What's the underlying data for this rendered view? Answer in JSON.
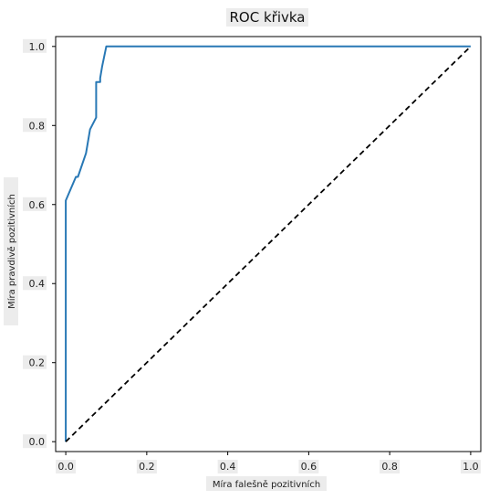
{
  "chart_data": {
    "type": "line",
    "title": "ROC křivka",
    "xlabel": "Míra falešně pozitivních",
    "ylabel": "Míra pravdivě pozitivních",
    "xlim": [
      -0.025,
      1.025
    ],
    "ylim": [
      -0.025,
      1.025
    ],
    "xticks": [
      0.0,
      0.2,
      0.4,
      0.6,
      0.8,
      1.0
    ],
    "yticks": [
      0.0,
      0.2,
      0.4,
      0.6,
      0.8,
      1.0
    ],
    "grid": false,
    "series": [
      {
        "color": "#2878b5",
        "style": "solid",
        "x": [
          0.0,
          0.0,
          0.0,
          0.025,
          0.03,
          0.05,
          0.06,
          0.075,
          0.075,
          0.085,
          0.085,
          0.09,
          0.1,
          0.1,
          1.0
        ],
        "y": [
          0.0,
          0.4,
          0.61,
          0.67,
          0.67,
          0.73,
          0.79,
          0.82,
          0.91,
          0.91,
          0.92,
          0.95,
          1.0,
          1.0,
          1.0
        ]
      },
      {
        "color": "#000000",
        "style": "dashed",
        "x": [
          0.0,
          1.0
        ],
        "y": [
          0.0,
          1.0
        ]
      }
    ]
  }
}
